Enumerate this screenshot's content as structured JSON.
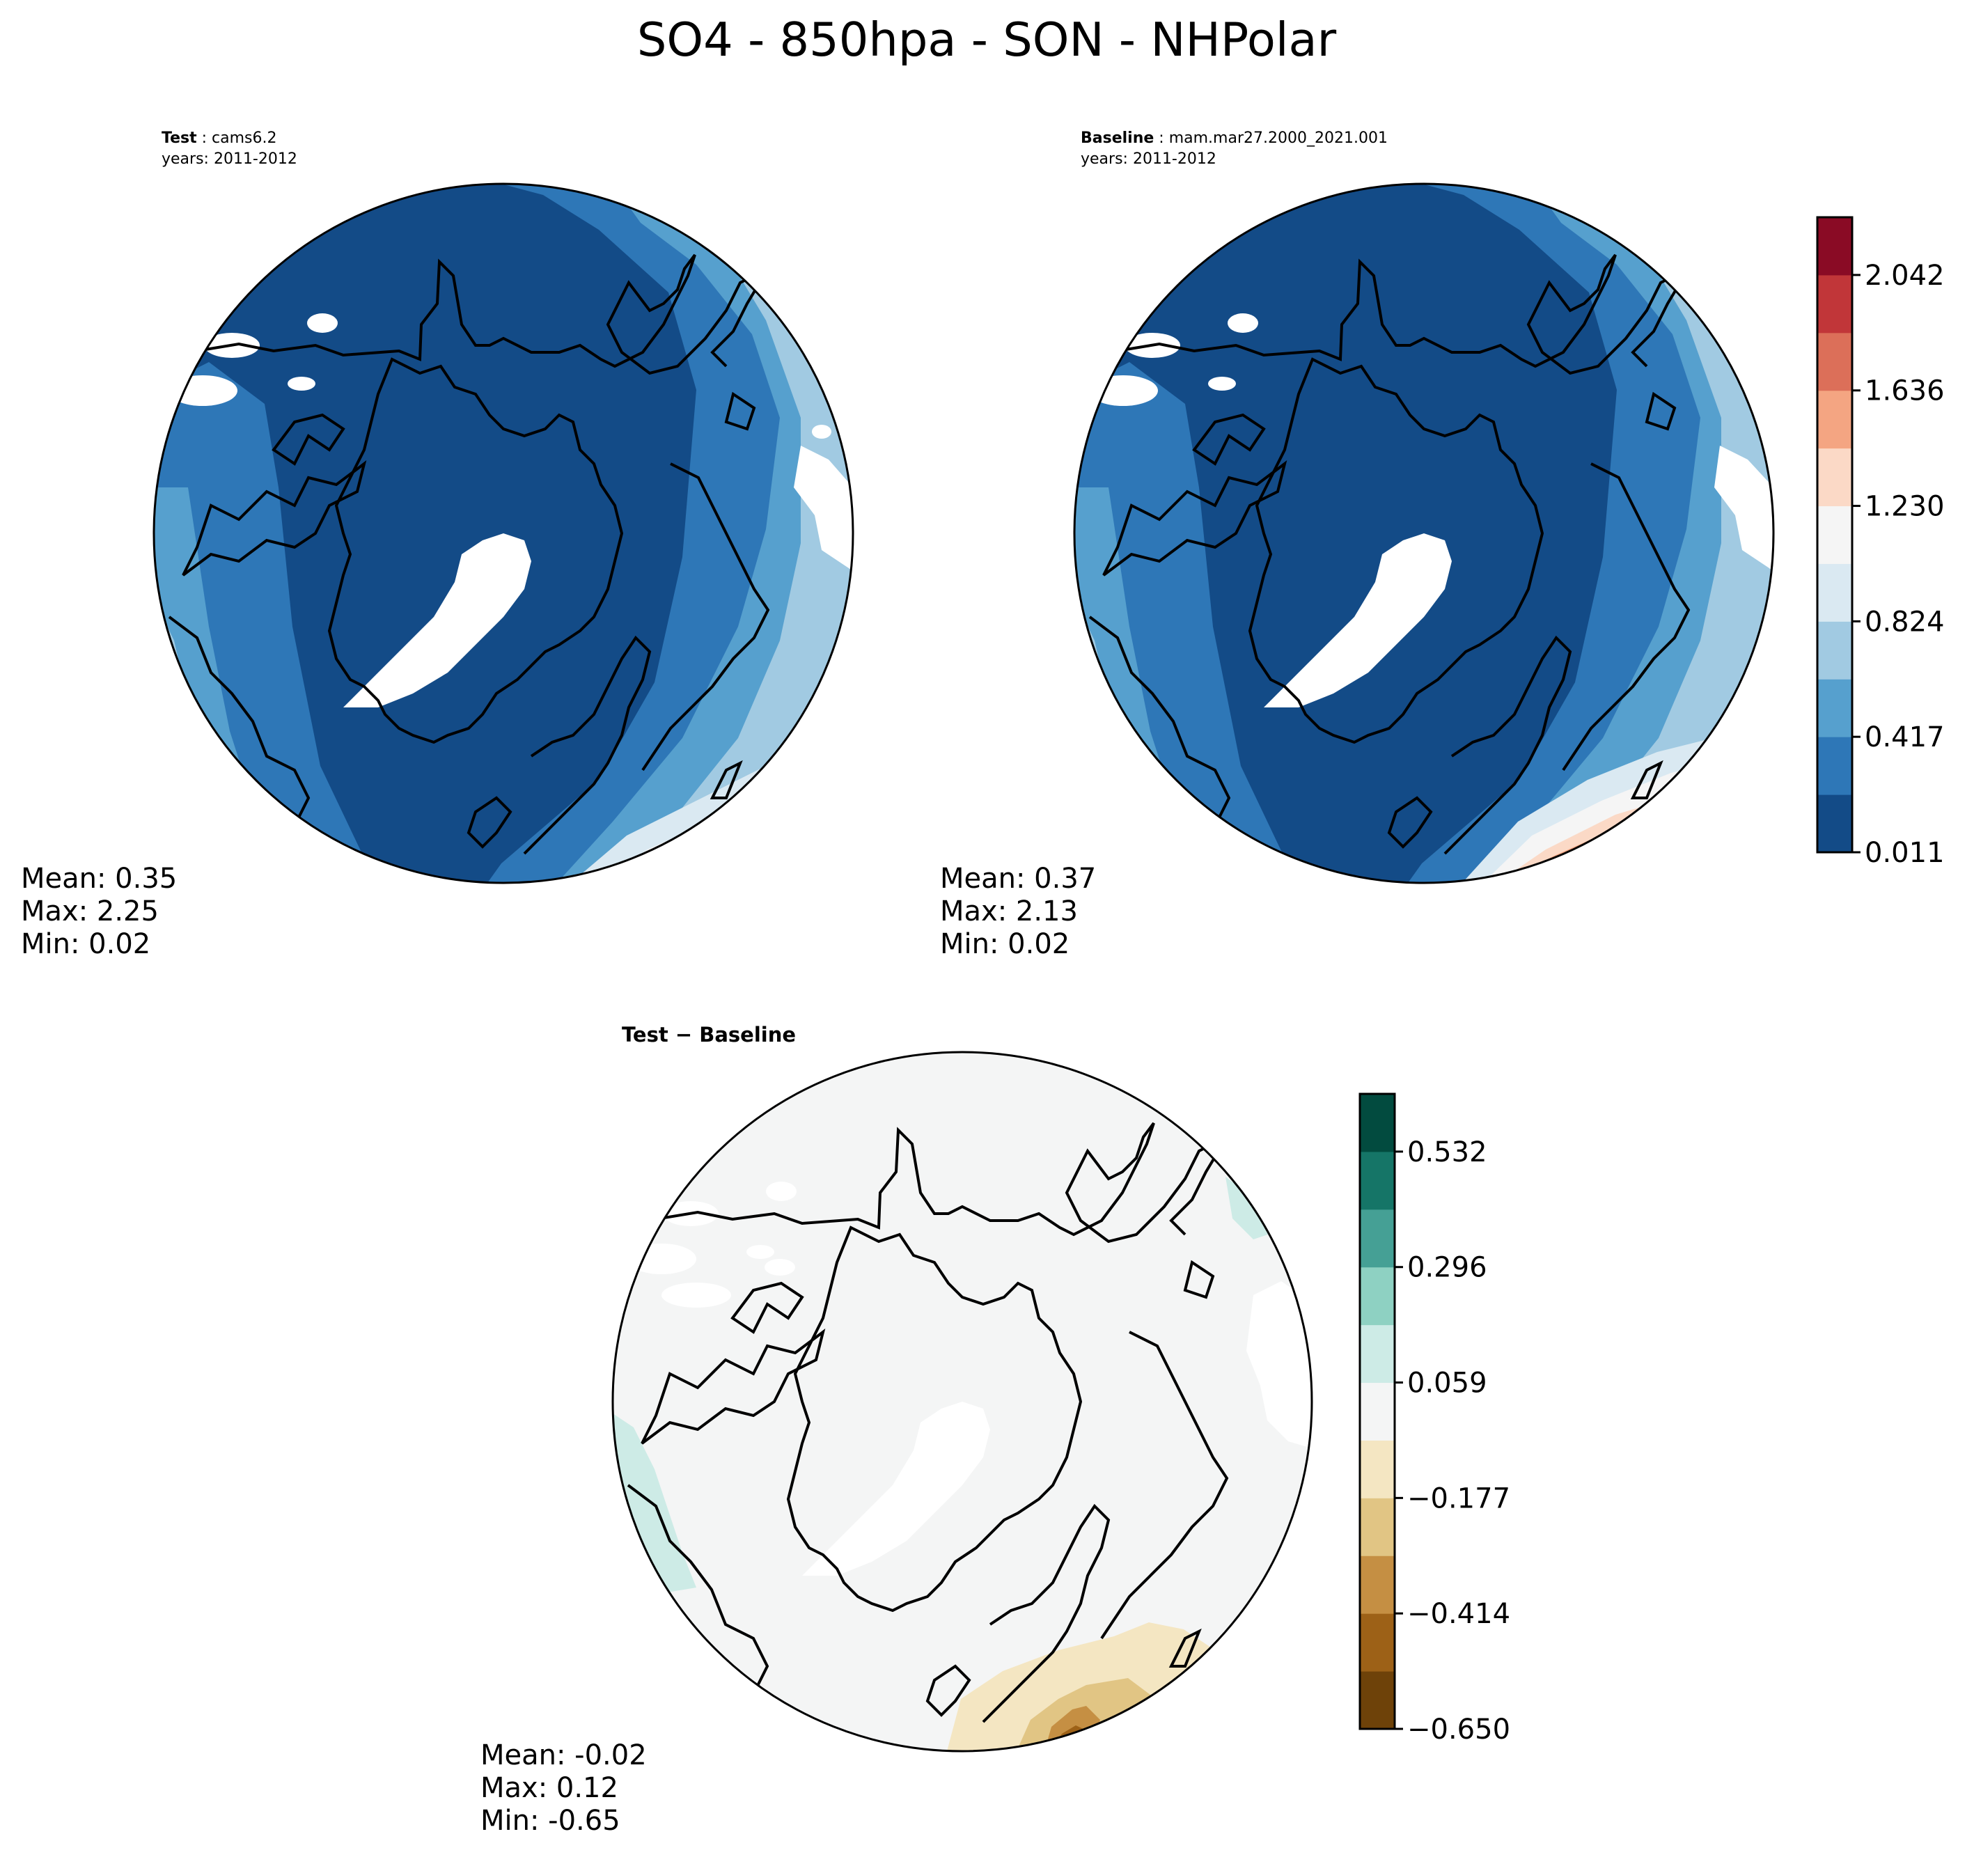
{
  "title": "SO4 - 850hpa - SON - NHPolar",
  "panels": [
    {
      "id": "test",
      "label_bold": "Test",
      "label_sep": " : ",
      "label_text": "cams6.2",
      "years": "years: 2011-2012",
      "stats": {
        "mean": "Mean:  0.35",
        "max": "Max:  2.25",
        "min": "Min:  0.02"
      }
    },
    {
      "id": "baseline",
      "label_bold": "Baseline",
      "label_sep": " : ",
      "label_text": "mam.mar27.2000_2021.001",
      "years": "years: 2011-2012",
      "stats": {
        "mean": "Mean:  0.37",
        "max": "Max:  2.13",
        "min": "Min:  0.02"
      }
    },
    {
      "id": "diff",
      "label": "Test − Baseline",
      "stats": {
        "mean": "Mean: -0.02",
        "max": "Max:  0.12",
        "min": "Min: -0.65"
      }
    }
  ],
  "colorbars": [
    {
      "id": "abs",
      "ticks": [
        "0.011",
        "0.417",
        "0.824",
        "1.230",
        "1.636",
        "2.042"
      ],
      "colors": [
        "#134b87",
        "#2e77b7",
        "#56a0ce",
        "#a1cae2",
        "#dae9f2",
        "#f5f5f5",
        "#fbd9c6",
        "#f4a582",
        "#dc6f59",
        "#c13639",
        "#8a0b25"
      ]
    },
    {
      "id": "diff",
      "ticks": [
        "−0.650",
        "−0.414",
        "−0.177",
        "0.059",
        "0.296",
        "0.532"
      ],
      "colors": [
        "#6e4209",
        "#9d6117",
        "#c58f43",
        "#e1c584",
        "#f4e6c2",
        "#f4f5f5",
        "#cdebe6",
        "#8ed1c2",
        "#45a095",
        "#157567",
        "#024b3f"
      ]
    }
  ],
  "chart_data": [
    {
      "type": "heatmap",
      "projection": "north polar stereographic",
      "variable": "SO4",
      "level": "850hpa",
      "season": "SON",
      "case": "cams6.2",
      "years": "2011-2012",
      "mean": 0.35,
      "max": 2.25,
      "min": 0.02,
      "colorbar": {
        "min": 0.011,
        "max": 2.25,
        "ticks": [
          0.011,
          0.417,
          0.824,
          1.23,
          1.636,
          2.042
        ],
        "cmap": "RdBu_r"
      }
    },
    {
      "type": "heatmap",
      "projection": "north polar stereographic",
      "variable": "SO4",
      "level": "850hpa",
      "season": "SON",
      "case": "mam.mar27.2000_2021.001",
      "years": "2011-2012",
      "mean": 0.37,
      "max": 2.13,
      "min": 0.02,
      "colorbar": {
        "min": 0.011,
        "max": 2.25,
        "ticks": [
          0.011,
          0.417,
          0.824,
          1.23,
          1.636,
          2.042
        ],
        "cmap": "RdBu_r"
      }
    },
    {
      "type": "heatmap",
      "projection": "north polar stereographic",
      "title": "Test − Baseline",
      "mean": -0.02,
      "max": 0.12,
      "min": -0.65,
      "colorbar": {
        "min": -0.65,
        "max": 0.65,
        "ticks": [
          -0.65,
          -0.414,
          -0.177,
          0.059,
          0.296,
          0.532
        ],
        "cmap": "BrBG"
      }
    }
  ]
}
